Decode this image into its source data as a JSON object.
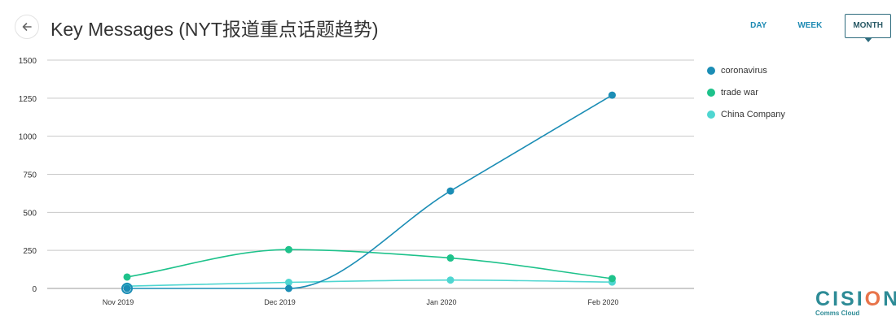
{
  "header": {
    "title": "Key Messages (NYT报道重点话题趋势)",
    "back_icon": "arrow-left-icon"
  },
  "range_tabs": [
    {
      "label": "DAY",
      "active": false
    },
    {
      "label": "WEEK",
      "active": false
    },
    {
      "label": "MONTH",
      "active": true
    }
  ],
  "branding": {
    "logo_text": "CISION",
    "logo_subtext": "Comms Cloud",
    "colors": {
      "logo": "#2d8b96",
      "accent": "#e8744a"
    }
  },
  "chart_data": {
    "type": "line",
    "categories": [
      "Nov 2019",
      "Dec 2019",
      "Jan 2020",
      "Feb 2020"
    ],
    "ylim": [
      0,
      1500
    ],
    "yticks": [
      0,
      250,
      500,
      750,
      1000,
      1250,
      1500
    ],
    "ytick_labels": [
      "0",
      "250",
      "500",
      "750",
      "1000",
      "1250",
      "1500"
    ],
    "grid": true,
    "legend_position": "right",
    "series": [
      {
        "name": "coronavirus",
        "color": "#1b8db5",
        "values": [
          0,
          0,
          640,
          1270
        ]
      },
      {
        "name": "trade war",
        "color": "#1ec28b",
        "values": [
          75,
          255,
          200,
          65
        ]
      },
      {
        "name": "China Company",
        "color": "#4fd6d1",
        "values": [
          15,
          40,
          55,
          42
        ]
      }
    ]
  }
}
